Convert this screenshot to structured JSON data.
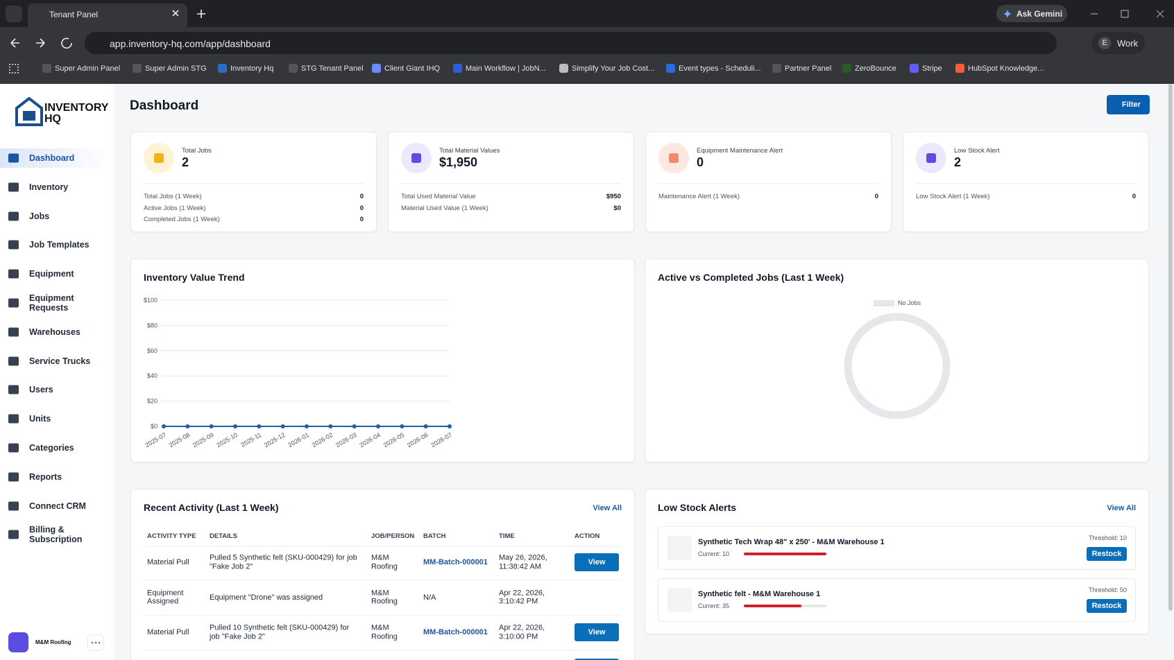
{
  "browser": {
    "tab": "Tenant Panel",
    "gemini": "Ask Gemini",
    "url": "app.inventory-hq.com/app/dashboard",
    "profile_initial": "E",
    "profile": "Work",
    "bookmarks": [
      "Super Admin Panel",
      "Super Admin STG",
      "Inventory Hq",
      "STG Tenant Panel",
      "Client Giant IHQ",
      "Main Workflow | JobN...",
      "Simplify Your Job Cost...",
      "Event types - Scheduli...",
      "Partner Panel",
      "ZeroBounce",
      "Stripe",
      "HubSpot Knowledge..."
    ]
  },
  "sidebar": {
    "logo_top": "INVENTORY",
    "logo_bottom": "HQ",
    "items": [
      "Dashboard",
      "Inventory",
      "Jobs",
      "Job Templates",
      "Equipment",
      "Equipment Requests",
      "Warehouses",
      "Service Trucks",
      "Users",
      "Units",
      "Categories",
      "Reports",
      "Connect CRM",
      "Billing & Subscription"
    ],
    "user": "M&M Roofing"
  },
  "header": {
    "title": "Dashboard",
    "filter": "Filter"
  },
  "stats": [
    {
      "label": "Total Jobs",
      "value": "2",
      "rows": [
        [
          "Total Jobs (1 Week)",
          "0"
        ],
        [
          "Active Jobs (1 Week)",
          "0"
        ],
        [
          "Completed Jobs (1 Week)",
          "0"
        ]
      ]
    },
    {
      "label": "Total Material Values",
      "value": "$1,950",
      "rows": [
        [
          "Total Used Material Value",
          "$950"
        ],
        [
          "Material Used Value (1 Week)",
          "$0"
        ]
      ]
    },
    {
      "label": "Equipment Maintenance Alert",
      "value": "0",
      "rows": [
        [
          "Maintenance Alert (1 Week)",
          "0"
        ]
      ]
    },
    {
      "label": "Low Stock Alert",
      "value": "2",
      "rows": [
        [
          "Low Stock Alert (1 Week)",
          "0"
        ]
      ]
    }
  ],
  "chart_data": [
    {
      "type": "line",
      "title": "Inventory Value Trend",
      "categories": [
        "2025-07",
        "2025-08",
        "2025-09",
        "2025-10",
        "2025-11",
        "2025-12",
        "2026-01",
        "2026-02",
        "2026-03",
        "2026-04",
        "2026-05",
        "2026-06",
        "2026-07"
      ],
      "values": [
        0,
        0,
        0,
        0,
        0,
        0,
        0,
        0,
        0,
        0,
        0,
        0,
        0
      ],
      "color": "#1f5fa8",
      "ylim": [
        0,
        100
      ],
      "yticks": [
        {
          "value": 0,
          "label": "$0"
        },
        {
          "value": 20,
          "label": "$20"
        },
        {
          "value": 40,
          "label": "$40"
        },
        {
          "value": 60,
          "label": "$60"
        },
        {
          "value": 80,
          "label": "$80"
        },
        {
          "value": 100,
          "label": "$100"
        }
      ],
      "grid": true
    },
    {
      "type": "doughnut",
      "title": "Active vs Completed Jobs (Last 1 Week)",
      "legend": "No Jobs"
    }
  ],
  "activity": {
    "title": "Recent Activity (Last 1 Week)",
    "view_all": "View All",
    "columns": [
      "ACTIVITY TYPE",
      "DETAILS",
      "JOB/PERSON",
      "BATCH",
      "TIME",
      "ACTION"
    ],
    "rows": [
      {
        "type": "Material Pull",
        "details": "Pulled 5 Synthetic felt (SKU-000429) for job \"Fake Job 2\"",
        "person": "M&M Roofing",
        "batch": "MM-Batch-000001",
        "time": "May 26, 2026, 11:38:42 AM",
        "action": "View"
      },
      {
        "type": "Equipment Assigned",
        "details": "Equipment \"Drone\" was assigned",
        "person": "M&M Roofing",
        "batch": "N/A",
        "time": "Apr 22, 2026, 3:10:42 PM"
      },
      {
        "type": "Material Pull",
        "details": "Pulled 10 Synthetic felt (SKU-000429) for job \"Fake Job 2\"",
        "person": "M&M Roofing",
        "batch": "MM-Batch-000001",
        "time": "Apr 22, 2026, 3:10:00 PM",
        "action": "View"
      }
    ]
  },
  "low_stock": {
    "title": "Low Stock Alerts",
    "view_all": "View All",
    "items": [
      {
        "name": "Synthetic Tech Wrap 48\" x 250' - M&M Warehouse 1",
        "current": "Current: 10",
        "threshold": "Threshold: 10",
        "action": "Restock"
      },
      {
        "name": "Synthetic felt - M&M Warehouse 1",
        "current": "Current: 35",
        "threshold": "Threshold: 50",
        "action": "Restock"
      }
    ]
  }
}
